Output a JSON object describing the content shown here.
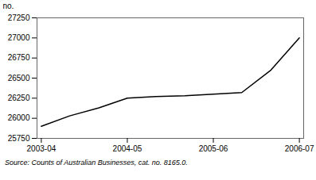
{
  "chart_data": {
    "type": "line",
    "x": [
      0,
      0.33,
      0.67,
      1.0,
      1.33,
      1.67,
      2.0,
      2.33,
      2.67,
      3.0
    ],
    "values": [
      25900,
      26030,
      26130,
      26250,
      26270,
      26280,
      26300,
      26320,
      26600,
      27000
    ],
    "color": "#000000",
    "xlim": [
      -0.05,
      3.05
    ],
    "xticks": [
      {
        "value": 0,
        "label": "2003-04"
      },
      {
        "value": 1,
        "label": "2004-05"
      },
      {
        "value": 2,
        "label": "2005-06"
      },
      {
        "value": 3,
        "label": "2006-07"
      }
    ],
    "ylim": [
      25750,
      27250
    ],
    "yticks": [
      25750,
      26000,
      26250,
      26500,
      26750,
      27000,
      27250
    ],
    "y_label": "no.",
    "caption": "Source: Counts of Australian Businesses, cat. no. 8165.0.",
    "grid": false
  }
}
